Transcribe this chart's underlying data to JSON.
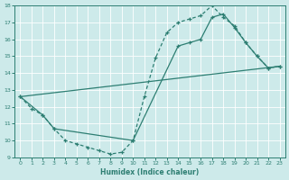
{
  "xlabel": "Humidex (Indice chaleur)",
  "xlim": [
    -0.5,
    23.5
  ],
  "ylim": [
    9,
    18
  ],
  "xticks": [
    0,
    1,
    2,
    3,
    4,
    5,
    6,
    7,
    8,
    9,
    10,
    11,
    12,
    13,
    14,
    15,
    16,
    17,
    18,
    19,
    20,
    21,
    22,
    23
  ],
  "yticks": [
    9,
    10,
    11,
    12,
    13,
    14,
    15,
    16,
    17,
    18
  ],
  "bg_color": "#cdeaea",
  "line_color": "#2d7e72",
  "line1_x": [
    0,
    1,
    2,
    3,
    4,
    5,
    6,
    7,
    8,
    9,
    10,
    11,
    12,
    13,
    14,
    15,
    16,
    17,
    18,
    19,
    20,
    21,
    22,
    23
  ],
  "line1_y": [
    12.6,
    11.9,
    11.5,
    10.7,
    10.0,
    9.8,
    9.6,
    9.4,
    9.2,
    9.3,
    10.0,
    12.6,
    14.9,
    16.4,
    17.0,
    17.2,
    17.4,
    18.0,
    17.3,
    16.8,
    15.8,
    15.0,
    14.3,
    14.4
  ],
  "line2_x": [
    0,
    2,
    3,
    10,
    14,
    15,
    16,
    17,
    18,
    19,
    20,
    21,
    22,
    23
  ],
  "line2_y": [
    12.6,
    11.5,
    10.7,
    10.0,
    15.6,
    15.8,
    16.0,
    17.3,
    17.5,
    16.7,
    15.8,
    15.0,
    14.3,
    14.4
  ],
  "line3_x": [
    0,
    23
  ],
  "line3_y": [
    12.6,
    14.4
  ]
}
